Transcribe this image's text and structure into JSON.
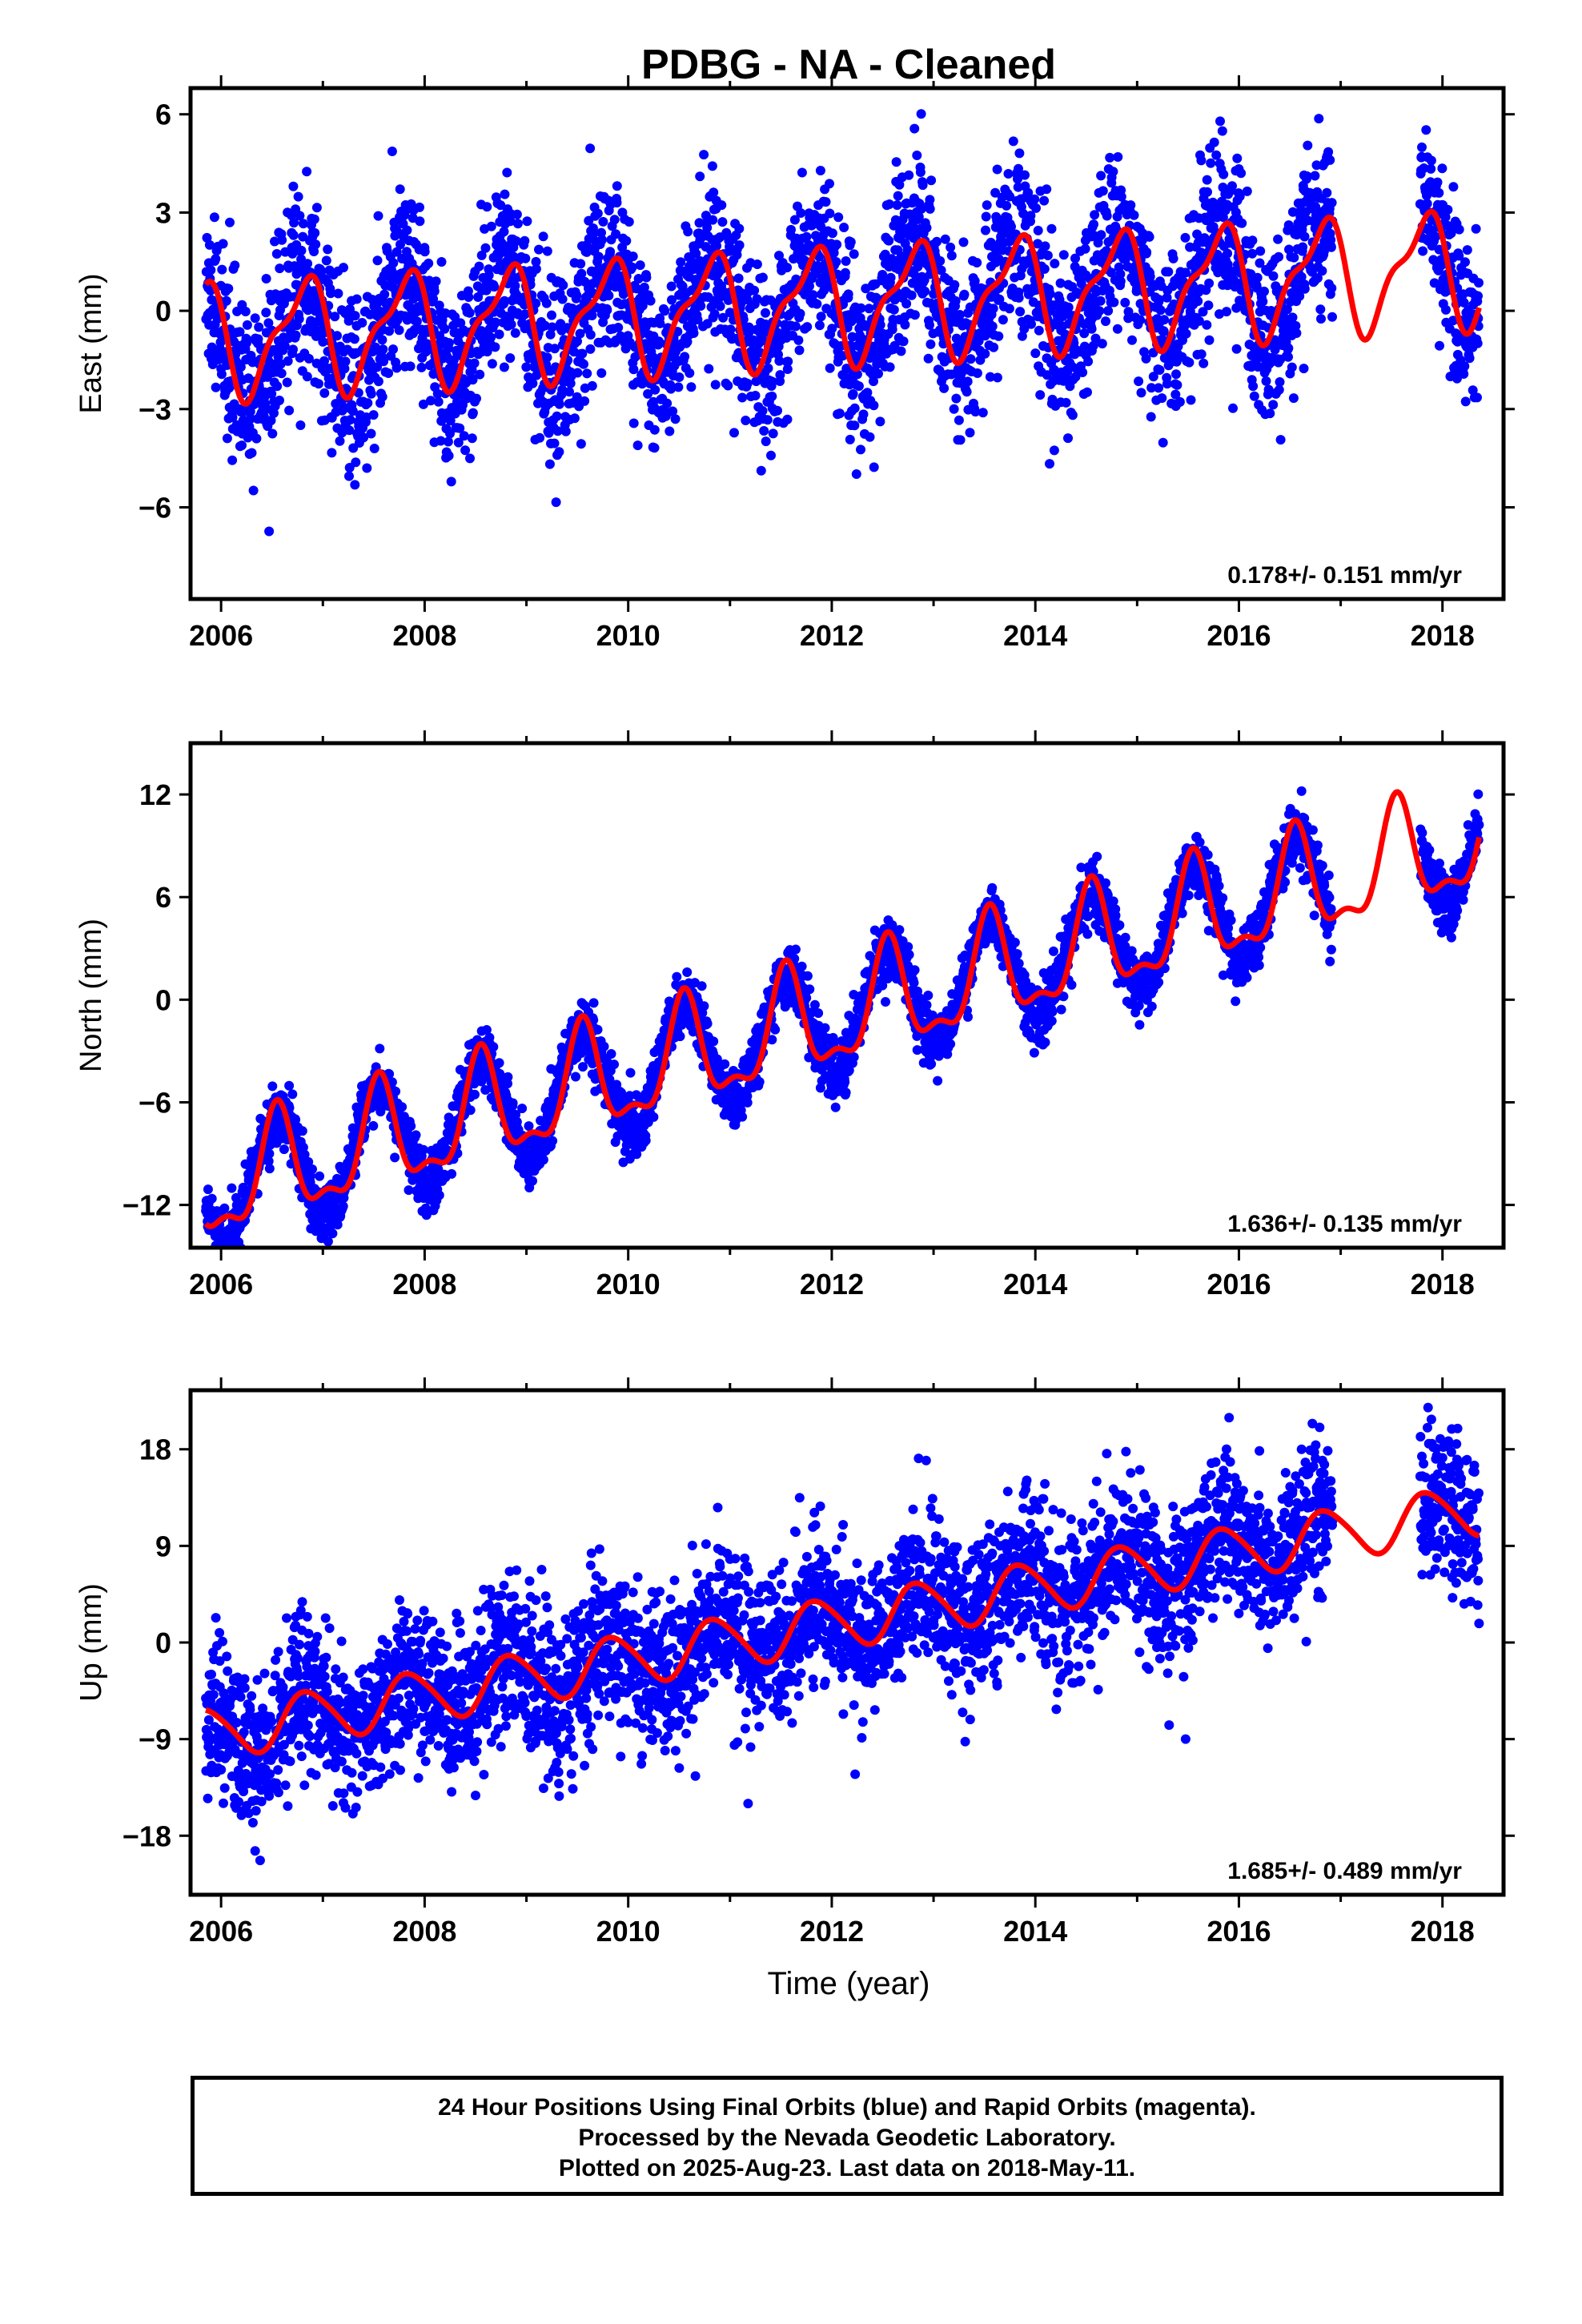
{
  "title": "PDBG  - NA - Cleaned",
  "chart_data": [
    {
      "type": "scatter",
      "ylabel": "East (mm)",
      "xlim": [
        2005.7,
        2018.6
      ],
      "ylim": [
        -8.8,
        6.8
      ],
      "yticks": [
        6,
        3,
        0,
        -3,
        -6
      ],
      "xticks": [
        2006,
        2008,
        2010,
        2012,
        2014,
        2016,
        2018
      ],
      "rate_label": "0.178+/- 0.151 mm/yr",
      "points": {
        "color": "#0000ff",
        "t_start": 2005.85,
        "t_end": 2018.36,
        "trend_mm_per_yr": 0.178,
        "offset_mm": -0.9,
        "annual_amp_mm": 1.8,
        "annual_peak_phase": 0.8,
        "scatter_sd_mm": 1.3
      },
      "fit_line": {
        "color": "#ff0000",
        "t_start": 2005.85,
        "t_end": 2018.36,
        "trend_mm_per_yr": 0.178,
        "offset_mm": -0.9,
        "annual_amp_mm": 1.6,
        "annual_peak_phase": 0.8,
        "semiannual_amp_mm": 0.6,
        "semiannual_peak_phase": 0.95
      }
    },
    {
      "type": "scatter",
      "ylabel": "North (mm)",
      "xlim": [
        2005.7,
        2018.6
      ],
      "ylim": [
        -14.5,
        15.0
      ],
      "yticks": [
        12,
        6,
        0,
        -6,
        -12
      ],
      "xticks": [
        2006,
        2008,
        2010,
        2012,
        2014,
        2016,
        2018
      ],
      "rate_label": "1.636+/- 0.135 mm/yr",
      "points": {
        "color": "#0000ff",
        "t_start": 2005.85,
        "t_end": 2018.36,
        "trend_mm_per_yr": 1.636,
        "offset_mm": -11.2,
        "annual_amp_mm": 3.2,
        "annual_peak_phase": 0.55,
        "scatter_sd_mm": 0.9
      },
      "fit_line": {
        "color": "#ff0000",
        "t_start": 2005.85,
        "t_end": 2018.36,
        "trend_mm_per_yr": 1.636,
        "offset_mm": -11.2,
        "annual_amp_mm": 3.0,
        "annual_peak_phase": 0.55,
        "semiannual_amp_mm": 1.2,
        "semiannual_peak_phase": 0.05
      }
    },
    {
      "type": "scatter",
      "ylabel": "Up (mm)",
      "xlim": [
        2005.7,
        2018.6
      ],
      "ylim": [
        -23.5,
        23.5
      ],
      "yticks": [
        18,
        9,
        0,
        -9,
        -18
      ],
      "xticks": [
        2006,
        2008,
        2010,
        2012,
        2014,
        2016,
        2018
      ],
      "rate_label": "1.685+/- 0.489 mm/yr",
      "xlabel": "Time (year)",
      "points": {
        "color": "#0000ff",
        "t_start": 2005.85,
        "t_end": 2018.36,
        "trend_mm_per_yr": 1.685,
        "offset_mm": -8.6,
        "annual_amp_mm": 2.5,
        "annual_peak_phase": 0.85,
        "scatter_sd_mm": 3.6
      },
      "fit_line": {
        "color": "#ff0000",
        "t_start": 2005.85,
        "t_end": 2018.36,
        "trend_mm_per_yr": 1.685,
        "offset_mm": -8.6,
        "annual_amp_mm": 2.4,
        "annual_peak_phase": 0.85,
        "semiannual_amp_mm": 0.3,
        "semiannual_peak_phase": 0.2
      }
    }
  ],
  "caption": {
    "line1": "24 Hour Positions Using Final Orbits (blue) and Rapid Orbits (magenta).",
    "line2": "Processed by the Nevada Geodetic Laboratory.",
    "line3": "Plotted on 2025-Aug-23. Last data on 2018-May-11."
  }
}
